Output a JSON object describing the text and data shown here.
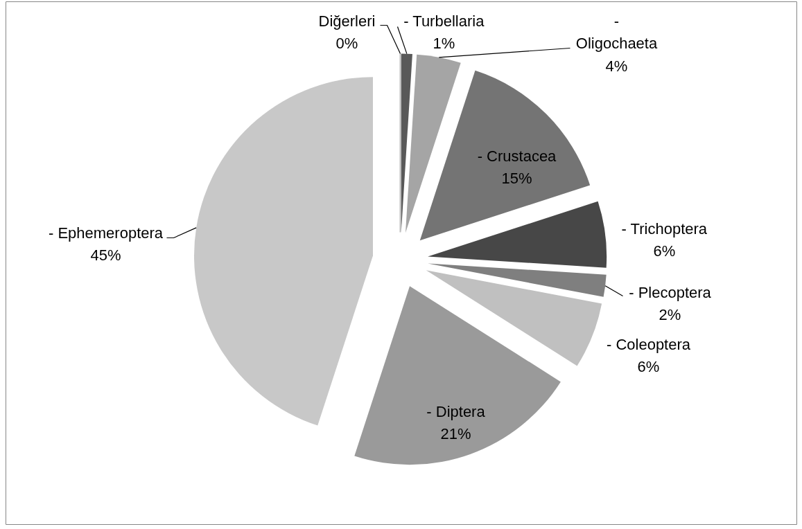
{
  "chart_data": {
    "type": "pie",
    "categories": [
      "Diğerleri",
      "- Turbellaria",
      "- Oligochaeta",
      "- Crustacea",
      "- Trichoptera",
      "- Plecoptera",
      "- Coleoptera",
      "- Diptera",
      "- Ephemeroptera"
    ],
    "values": [
      0,
      1,
      4,
      15,
      6,
      2,
      6,
      21,
      45
    ],
    "colors": [
      "#bfbfbf",
      "#595959",
      "#a5a5a5",
      "#747474",
      "#474747",
      "#7f7f7f",
      "#c0c0c0",
      "#9a9a9a",
      "#c8c8c8"
    ],
    "value_labels": [
      "0%",
      "1%",
      "4%",
      "15%",
      "6%",
      "2%",
      "6%",
      "21%",
      "45%"
    ]
  }
}
